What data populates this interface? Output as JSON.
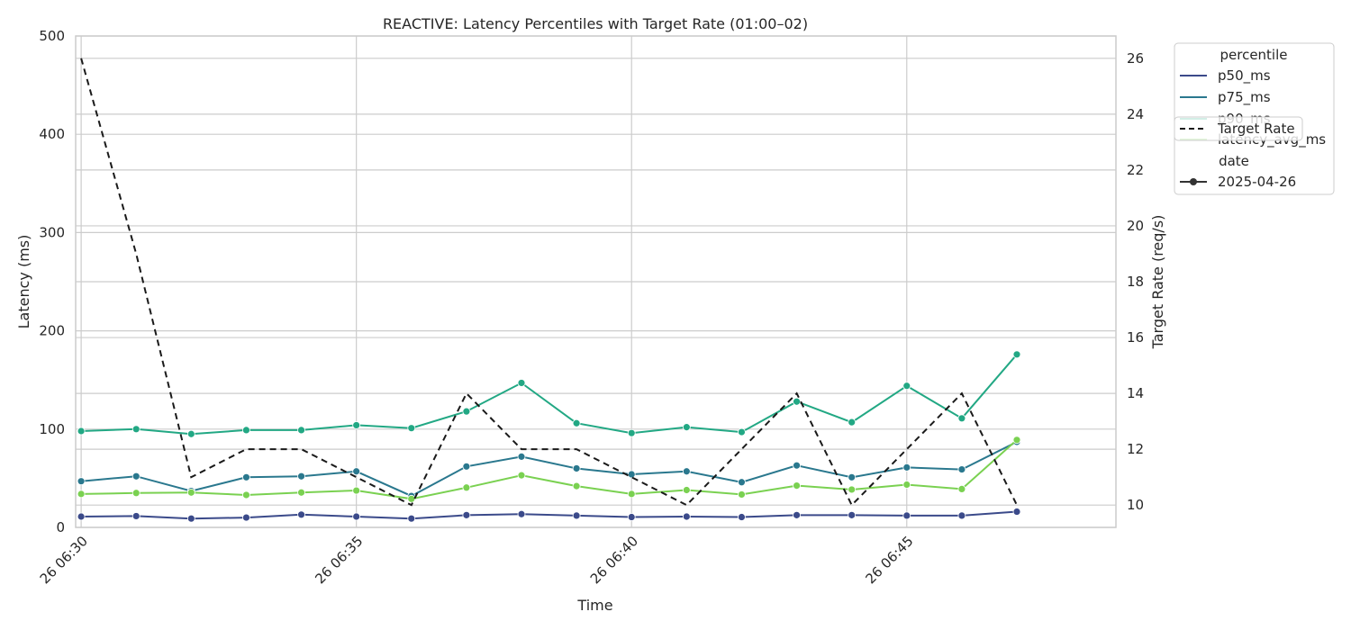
{
  "chart_data": {
    "type": "line",
    "title": "REACTIVE: Latency Percentiles with Target Rate (01:00–02)",
    "xlabel": "Time",
    "ylabel": "Latency (ms)",
    "y2label": "Target Rate (req/s)",
    "ylim": [
      0,
      500
    ],
    "y2lim": [
      9.2,
      26.8
    ],
    "xlim": [
      "06:29.9",
      "06:48.8"
    ],
    "grid": true,
    "legend_position": "outside-top-right",
    "x_ticks": [
      "26 06:30",
      "26 06:35",
      "26 06:40",
      "26 06:45"
    ],
    "y_ticks": [
      0,
      100,
      200,
      300,
      400,
      500
    ],
    "y2_ticks": [
      10,
      12,
      14,
      16,
      18,
      20,
      22,
      24,
      26
    ],
    "x": [
      "06:30",
      "06:31",
      "06:32",
      "06:33",
      "06:34",
      "06:35",
      "06:36",
      "06:37",
      "06:38",
      "06:39",
      "06:40",
      "06:41",
      "06:42",
      "06:43",
      "06:44",
      "06:45",
      "06:46",
      "06:47",
      "06:48"
    ],
    "series": [
      {
        "name": "p50_ms",
        "color": "#3b4a8a",
        "axis": "left",
        "values": [
          11,
          11.5,
          9,
          10,
          13,
          11,
          9,
          12.5,
          13.5,
          12,
          10.5,
          11,
          10.5,
          12.5,
          12.5,
          12,
          12,
          16,
          null
        ]
      },
      {
        "name": "p75_ms",
        "color": "#2a788e",
        "axis": "left",
        "values": [
          47,
          52,
          37,
          51,
          52,
          57,
          32,
          62,
          72,
          60,
          54,
          57,
          46,
          63,
          51,
          61,
          59,
          87,
          null
        ]
      },
      {
        "name": "p90_ms",
        "color": "#22a884",
        "axis": "left",
        "values": [
          98,
          100,
          95,
          99,
          99,
          104,
          101,
          118,
          147,
          106,
          96,
          102,
          97,
          128,
          107,
          144,
          111,
          176,
          null
        ]
      },
      {
        "name": "latency_avg_ms",
        "color": "#7ad151",
        "axis": "left",
        "values": [
          34,
          35,
          35.5,
          33,
          35.5,
          37.5,
          29,
          40.5,
          53,
          42,
          34,
          38,
          33.5,
          42.5,
          38.5,
          43.5,
          39,
          89,
          null
        ]
      },
      {
        "name": "Target Rate",
        "color": "#1a1a1a",
        "axis": "right",
        "dashed": true,
        "values": [
          26,
          19,
          11,
          12,
          12,
          11,
          10,
          14,
          12,
          12,
          11,
          10,
          12,
          14,
          10,
          12,
          14,
          10,
          null
        ]
      }
    ],
    "legend": {
      "title_percentile": "percentile",
      "title_date": "date",
      "entries": [
        "p50_ms",
        "p75_ms",
        "p90_ms",
        "latency_avg_ms"
      ],
      "date_entry": "2025-04-26",
      "target_entry": "Target Rate"
    }
  }
}
